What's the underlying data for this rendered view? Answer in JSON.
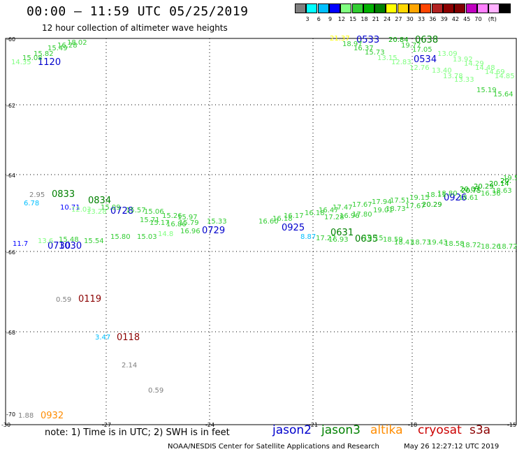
{
  "header": {
    "title": "00:00 – 11:59 UTC 05/25/2019",
    "subtitle": "12 hour collection of altimeter wave heights"
  },
  "scale": {
    "colors": [
      "#7f7f7f",
      "#00ffff",
      "#00bfff",
      "#0000ff",
      "#80ff80",
      "#32cd32",
      "#00b000",
      "#008000",
      "#ffff00",
      "#ffd700",
      "#ffa500",
      "#ff4500",
      "#b22222",
      "#8b0000",
      "#800000",
      "#c000c0",
      "#ff80ff",
      "#ffb0ff",
      "#000000"
    ],
    "labels": [
      "3",
      "6",
      "9",
      "12",
      "15",
      "18",
      "21",
      "24",
      "27",
      "30",
      "33",
      "36",
      "39",
      "42",
      "45",
      "70",
      "(ft)"
    ]
  },
  "axes": {
    "lat_ticks": [
      "-60",
      "-62",
      "-64",
      "-66",
      "-68",
      "-70"
    ],
    "lon_ticks": [
      "-30",
      "-27",
      "-24",
      "-21",
      "-18",
      "-15"
    ]
  },
  "footer": {
    "note": "note: 1) Time is in UTC; 2) SWH is in feet",
    "credit": "NOAA/NESDIS Center for Satellite Applications and Research",
    "stamp": "May 26 12:27:12 UTC 2019",
    "legend": [
      {
        "name": "jason2",
        "color": "#0000cc"
      },
      {
        "name": "jason3",
        "color": "#008000"
      },
      {
        "name": "altika",
        "color": "#ff8c00"
      },
      {
        "name": "cryosat",
        "color": "#cc0000"
      },
      {
        "name": "s3a",
        "color": "#8b0000"
      }
    ]
  },
  "time_labels": [
    {
      "text": "1120",
      "color": "#0000cc"
    },
    {
      "text": "0533",
      "color": "#0000cc"
    },
    {
      "text": "0638",
      "color": "#008000"
    },
    {
      "text": "0534",
      "color": "#0000cc"
    },
    {
      "text": "0833",
      "color": "#008000"
    },
    {
      "text": "0834",
      "color": "#008000"
    },
    {
      "text": "0728",
      "color": "#0000cc"
    },
    {
      "text": "0729",
      "color": "#0000cc"
    },
    {
      "text": "0925",
      "color": "#0000cc"
    },
    {
      "text": "0631",
      "color": "#008000"
    },
    {
      "text": "0635",
      "color": "#008000"
    },
    {
      "text": "0730",
      "color": "#0000cc"
    },
    {
      "text": "0926",
      "color": "#0000cc"
    },
    {
      "text": "1030",
      "color": "#0000cc"
    },
    {
      "text": "0119",
      "color": "#8b0000"
    },
    {
      "text": "0118",
      "color": "#8b0000"
    },
    {
      "text": "0932",
      "color": "#ff8c00"
    }
  ],
  "values": [
    {
      "text": "14.35",
      "color": "#80ff80"
    },
    {
      "text": "15.08",
      "color": "#32cd32"
    },
    {
      "text": "15.82",
      "color": "#32cd32"
    },
    {
      "text": "15.49",
      "color": "#32cd32"
    },
    {
      "text": "16.28",
      "color": "#32cd32"
    },
    {
      "text": "18.02",
      "color": "#32cd32"
    },
    {
      "text": "21.37",
      "color": "#ffff00"
    },
    {
      "text": "18.97",
      "color": "#32cd32"
    },
    {
      "text": "16.37",
      "color": "#32cd32"
    },
    {
      "text": "15.73",
      "color": "#32cd32"
    },
    {
      "text": "20.84",
      "color": "#00b000"
    },
    {
      "text": "19.77",
      "color": "#32cd32"
    },
    {
      "text": "17.05",
      "color": "#32cd32"
    },
    {
      "text": "13.15",
      "color": "#80ff80"
    },
    {
      "text": "12.83",
      "color": "#80ff80"
    },
    {
      "text": "12.76",
      "color": "#80ff80"
    },
    {
      "text": "13.40",
      "color": "#80ff80"
    },
    {
      "text": "13.78",
      "color": "#80ff80"
    },
    {
      "text": "13.33",
      "color": "#80ff80"
    },
    {
      "text": "13.09",
      "color": "#80ff80"
    },
    {
      "text": "13.92",
      "color": "#80ff80"
    },
    {
      "text": "14.29",
      "color": "#80ff80"
    },
    {
      "text": "14.48",
      "color": "#80ff80"
    },
    {
      "text": "14.69",
      "color": "#80ff80"
    },
    {
      "text": "14.85",
      "color": "#80ff80"
    },
    {
      "text": "15.19",
      "color": "#32cd32"
    },
    {
      "text": "15.64",
      "color": "#32cd32"
    },
    {
      "text": "2.95",
      "color": "#7f7f7f"
    },
    {
      "text": "6.78",
      "color": "#00bfff"
    },
    {
      "text": "10.71",
      "color": "#0000ff"
    },
    {
      "text": "12.03",
      "color": "#80ff80"
    },
    {
      "text": "13.28",
      "color": "#80ff80"
    },
    {
      "text": "15.09",
      "color": "#32cd32"
    },
    {
      "text": "15.57",
      "color": "#32cd32"
    },
    {
      "text": "15.06",
      "color": "#32cd32"
    },
    {
      "text": "15.26",
      "color": "#32cd32"
    },
    {
      "text": "15.97",
      "color": "#32cd32"
    },
    {
      "text": "15.71",
      "color": "#32cd32"
    },
    {
      "text": "15.17",
      "color": "#32cd32"
    },
    {
      "text": "16.86",
      "color": "#32cd32"
    },
    {
      "text": "15.79",
      "color": "#32cd32"
    },
    {
      "text": "15.33",
      "color": "#32cd32"
    },
    {
      "text": "16.60",
      "color": "#32cd32"
    },
    {
      "text": "16.18",
      "color": "#32cd32"
    },
    {
      "text": "16.17",
      "color": "#32cd32"
    },
    {
      "text": "16.18",
      "color": "#32cd32"
    },
    {
      "text": "16.47",
      "color": "#32cd32"
    },
    {
      "text": "17.47",
      "color": "#32cd32"
    },
    {
      "text": "17.67",
      "color": "#32cd32"
    },
    {
      "text": "17.94",
      "color": "#32cd32"
    },
    {
      "text": "17.51",
      "color": "#32cd32"
    },
    {
      "text": "19.15",
      "color": "#32cd32"
    },
    {
      "text": "18.11",
      "color": "#32cd32"
    },
    {
      "text": "18.80",
      "color": "#32cd32"
    },
    {
      "text": "20.75",
      "color": "#00b000"
    },
    {
      "text": "20.03",
      "color": "#00b000"
    },
    {
      "text": "20.29",
      "color": "#00b000"
    },
    {
      "text": "20.14",
      "color": "#00b000"
    },
    {
      "text": "20.",
      "color": "#00b000"
    },
    {
      "text": "19.51",
      "color": "#32cd32"
    },
    {
      "text": "18.63",
      "color": "#32cd32"
    },
    {
      "text": "17.80",
      "color": "#32cd32"
    },
    {
      "text": "19.01",
      "color": "#32cd32"
    },
    {
      "text": "18.73",
      "color": "#32cd32"
    },
    {
      "text": "17.67",
      "color": "#32cd32"
    },
    {
      "text": "20.29",
      "color": "#00b000"
    },
    {
      "text": "18.61",
      "color": "#32cd32"
    },
    {
      "text": "16.36",
      "color": "#32cd32"
    },
    {
      "text": "17.28",
      "color": "#32cd32"
    },
    {
      "text": "16.96",
      "color": "#32cd32"
    },
    {
      "text": "8.87",
      "color": "#00bfff"
    },
    {
      "text": "11.7",
      "color": "#0000ff"
    },
    {
      "text": "13.6",
      "color": "#80ff80"
    },
    {
      "text": "15.48",
      "color": "#32cd32"
    },
    {
      "text": "15.54",
      "color": "#32cd32"
    },
    {
      "text": "15.80",
      "color": "#32cd32"
    },
    {
      "text": "15.03",
      "color": "#32cd32"
    },
    {
      "text": "14.8",
      "color": "#80ff80"
    },
    {
      "text": "16.96",
      "color": "#32cd32"
    },
    {
      "text": "17.27",
      "color": "#32cd32"
    },
    {
      "text": "16.93",
      "color": "#32cd32"
    },
    {
      "text": "19.15",
      "color": "#32cd32"
    },
    {
      "text": "18.59",
      "color": "#32cd32"
    },
    {
      "text": "18.41",
      "color": "#32cd32"
    },
    {
      "text": "18.73",
      "color": "#32cd32"
    },
    {
      "text": "19.43",
      "color": "#32cd32"
    },
    {
      "text": "18.58",
      "color": "#32cd32"
    },
    {
      "text": "18.72",
      "color": "#32cd32"
    },
    {
      "text": "18.26",
      "color": "#32cd32"
    },
    {
      "text": "18.72",
      "color": "#32cd32"
    },
    {
      "text": "0.59",
      "color": "#7f7f7f"
    },
    {
      "text": "3.47",
      "color": "#00bfff"
    },
    {
      "text": "2.14",
      "color": "#7f7f7f"
    },
    {
      "text": "0.59",
      "color": "#7f7f7f"
    },
    {
      "text": "1.88",
      "color": "#7f7f7f"
    }
  ]
}
